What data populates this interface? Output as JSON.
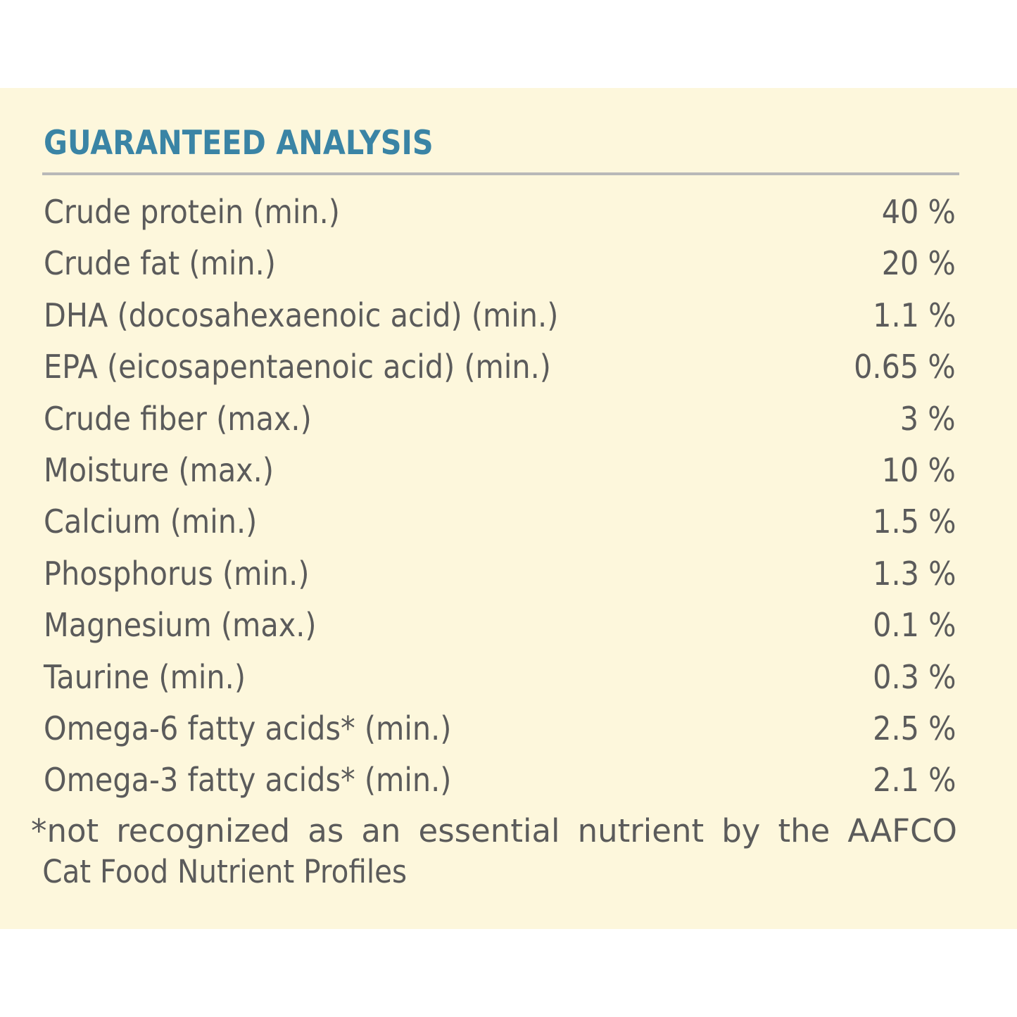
{
  "title": "GUARANTEED ANALYSIS",
  "rows": [
    {
      "label": "Crude protein (min.)",
      "value": "40 %"
    },
    {
      "label": "Crude fat (min.)",
      "value": "20 %"
    },
    {
      "label": "DHA (docosahexaenoic acid) (min.)",
      "value": "1.1 %"
    },
    {
      "label": "EPA (eicosapentaenoic acid) (min.)",
      "value": "0.65 %"
    },
    {
      "label": "Crude fiber (max.)",
      "value": "3 %"
    },
    {
      "label": "Moisture (max.)",
      "value": "10 %"
    },
    {
      "label": "Calcium (min.)",
      "value": "1.5 %"
    },
    {
      "label": "Phosphorus (min.)",
      "value": "1.3 %"
    },
    {
      "label": "Magnesium (max.)",
      "value": "0.1 %"
    },
    {
      "label": "Taurine (min.)",
      "value": "0.3 %"
    },
    {
      "label": "Omega-6 fatty acids* (min.)",
      "value": "2.5 %"
    },
    {
      "label": "Omega-3 fatty acids* (min.)",
      "value": "2.1 %"
    }
  ],
  "footnote": {
    "line1": "*not recognized as an essential nutrient by the AAFCO",
    "line2": "Cat Food Nutrient Profiles"
  },
  "colors": {
    "background": "#fdf7dc",
    "title": "#3a84a5",
    "text": "#5b5b5b",
    "rule": "#b8b8b8"
  }
}
